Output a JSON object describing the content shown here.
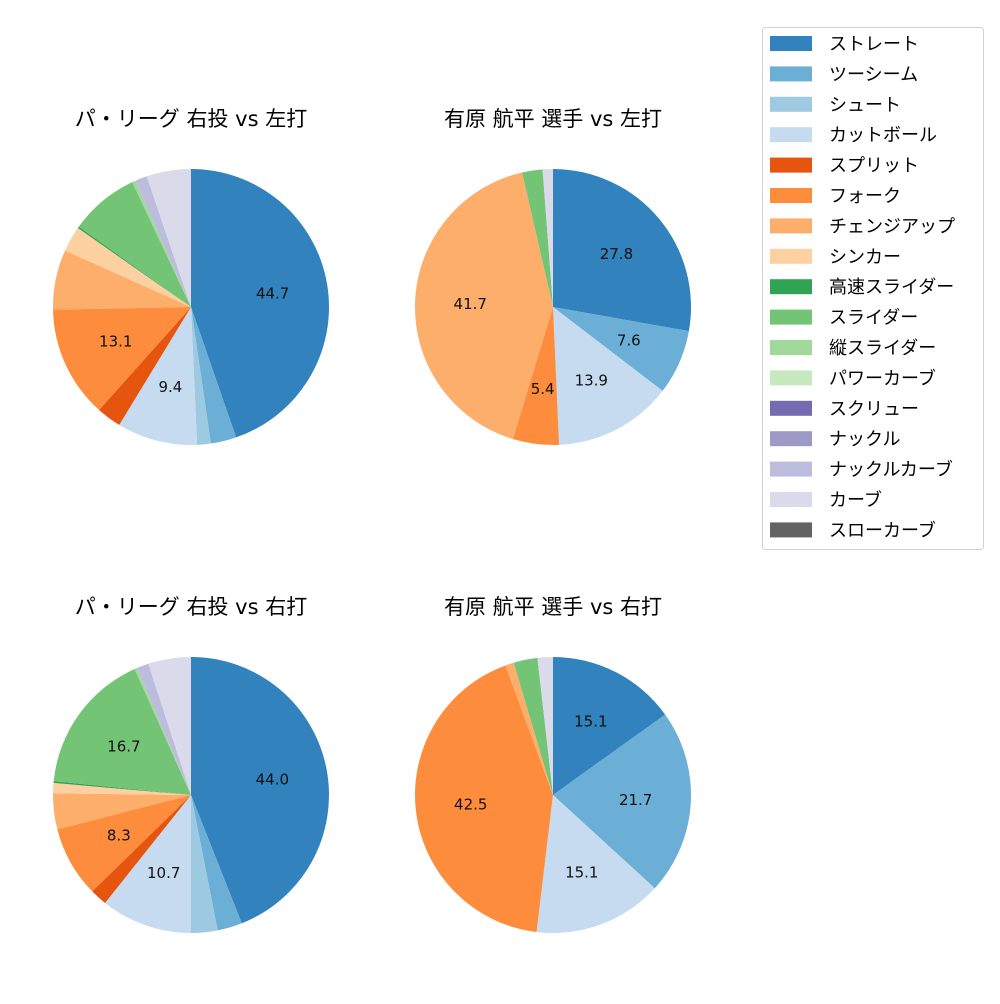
{
  "chart_data": [
    {
      "type": "pie",
      "title": "パ・リーグ 右投 vs 左打",
      "slices": [
        {
          "name": "ストレート",
          "value": 44.7,
          "labeled": true
        },
        {
          "name": "ツーシーム",
          "value": 3.0,
          "labeled": false
        },
        {
          "name": "シュート",
          "value": 1.6,
          "labeled": false
        },
        {
          "name": "カットボール",
          "value": 9.4,
          "labeled": true
        },
        {
          "name": "スプリット",
          "value": 2.9,
          "labeled": false
        },
        {
          "name": "フォーク",
          "value": 13.1,
          "labeled": true
        },
        {
          "name": "チェンジアップ",
          "value": 7.0,
          "labeled": false
        },
        {
          "name": "シンカー",
          "value": 3.0,
          "labeled": false
        },
        {
          "name": "高速スライダー",
          "value": 0.2,
          "labeled": false
        },
        {
          "name": "スライダー",
          "value": 8.1,
          "labeled": false
        },
        {
          "name": "縦スライダー",
          "value": 0.4,
          "labeled": false
        },
        {
          "name": "ナックルカーブ",
          "value": 1.4,
          "labeled": false
        },
        {
          "name": "カーブ",
          "value": 5.2,
          "labeled": false
        }
      ]
    },
    {
      "type": "pie",
      "title": "有原 航平 選手 vs 左打",
      "slices": [
        {
          "name": "ストレート",
          "value": 27.8,
          "labeled": true
        },
        {
          "name": "ツーシーム",
          "value": 7.6,
          "labeled": true
        },
        {
          "name": "カットボール",
          "value": 13.9,
          "labeled": true
        },
        {
          "name": "フォーク",
          "value": 5.4,
          "labeled": true
        },
        {
          "name": "チェンジアップ",
          "value": 41.7,
          "labeled": true
        },
        {
          "name": "スライダー",
          "value": 2.4,
          "labeled": false
        },
        {
          "name": "カーブ",
          "value": 1.2,
          "labeled": false
        }
      ]
    },
    {
      "type": "pie",
      "title": "パ・リーグ 右投 vs 右打",
      "slices": [
        {
          "name": "ストレート",
          "value": 44.0,
          "labeled": true
        },
        {
          "name": "ツーシーム",
          "value": 2.9,
          "labeled": false
        },
        {
          "name": "シュート",
          "value": 3.1,
          "labeled": false
        },
        {
          "name": "カットボール",
          "value": 10.7,
          "labeled": true
        },
        {
          "name": "スプリット",
          "value": 2.0,
          "labeled": false
        },
        {
          "name": "フォーク",
          "value": 8.3,
          "labeled": true
        },
        {
          "name": "チェンジアップ",
          "value": 4.2,
          "labeled": false
        },
        {
          "name": "シンカー",
          "value": 1.2,
          "labeled": false
        },
        {
          "name": "高速スライダー",
          "value": 0.2,
          "labeled": false
        },
        {
          "name": "スライダー",
          "value": 16.7,
          "labeled": true
        },
        {
          "name": "縦スライダー",
          "value": 0.3,
          "labeled": false
        },
        {
          "name": "ナックルカーブ",
          "value": 1.4,
          "labeled": false
        },
        {
          "name": "カーブ",
          "value": 5.0,
          "labeled": false
        }
      ]
    },
    {
      "type": "pie",
      "title": "有原 航平 選手 vs 右打",
      "slices": [
        {
          "name": "ストレート",
          "value": 15.1,
          "labeled": true
        },
        {
          "name": "ツーシーム",
          "value": 21.7,
          "labeled": true
        },
        {
          "name": "カットボール",
          "value": 15.1,
          "labeled": true
        },
        {
          "name": "フォーク",
          "value": 42.5,
          "labeled": true
        },
        {
          "name": "チェンジアップ",
          "value": 1.0,
          "labeled": false
        },
        {
          "name": "スライダー",
          "value": 2.8,
          "labeled": false
        },
        {
          "name": "カーブ",
          "value": 1.8,
          "labeled": false
        }
      ]
    }
  ],
  "legend": {
    "placement": "top-right",
    "entries": [
      {
        "name": "ストレート",
        "color": "#3182bd"
      },
      {
        "name": "ツーシーム",
        "color": "#6baed6"
      },
      {
        "name": "シュート",
        "color": "#9ecae1"
      },
      {
        "name": "カットボール",
        "color": "#c6dbef"
      },
      {
        "name": "スプリット",
        "color": "#e6550d"
      },
      {
        "name": "フォーク",
        "color": "#fd8d3c"
      },
      {
        "name": "チェンジアップ",
        "color": "#fdae6b"
      },
      {
        "name": "シンカー",
        "color": "#fdd0a2"
      },
      {
        "name": "高速スライダー",
        "color": "#31a354"
      },
      {
        "name": "スライダー",
        "color": "#74c476"
      },
      {
        "name": "縦スライダー",
        "color": "#a1d99b"
      },
      {
        "name": "パワーカーブ",
        "color": "#c7e9c0"
      },
      {
        "name": "スクリュー",
        "color": "#756bb1"
      },
      {
        "name": "ナックル",
        "color": "#9e9ac8"
      },
      {
        "name": "ナックルカーブ",
        "color": "#bcbddc"
      },
      {
        "name": "カーブ",
        "color": "#dadaeb"
      },
      {
        "name": "スローカーブ",
        "color": "#636363"
      }
    ]
  }
}
